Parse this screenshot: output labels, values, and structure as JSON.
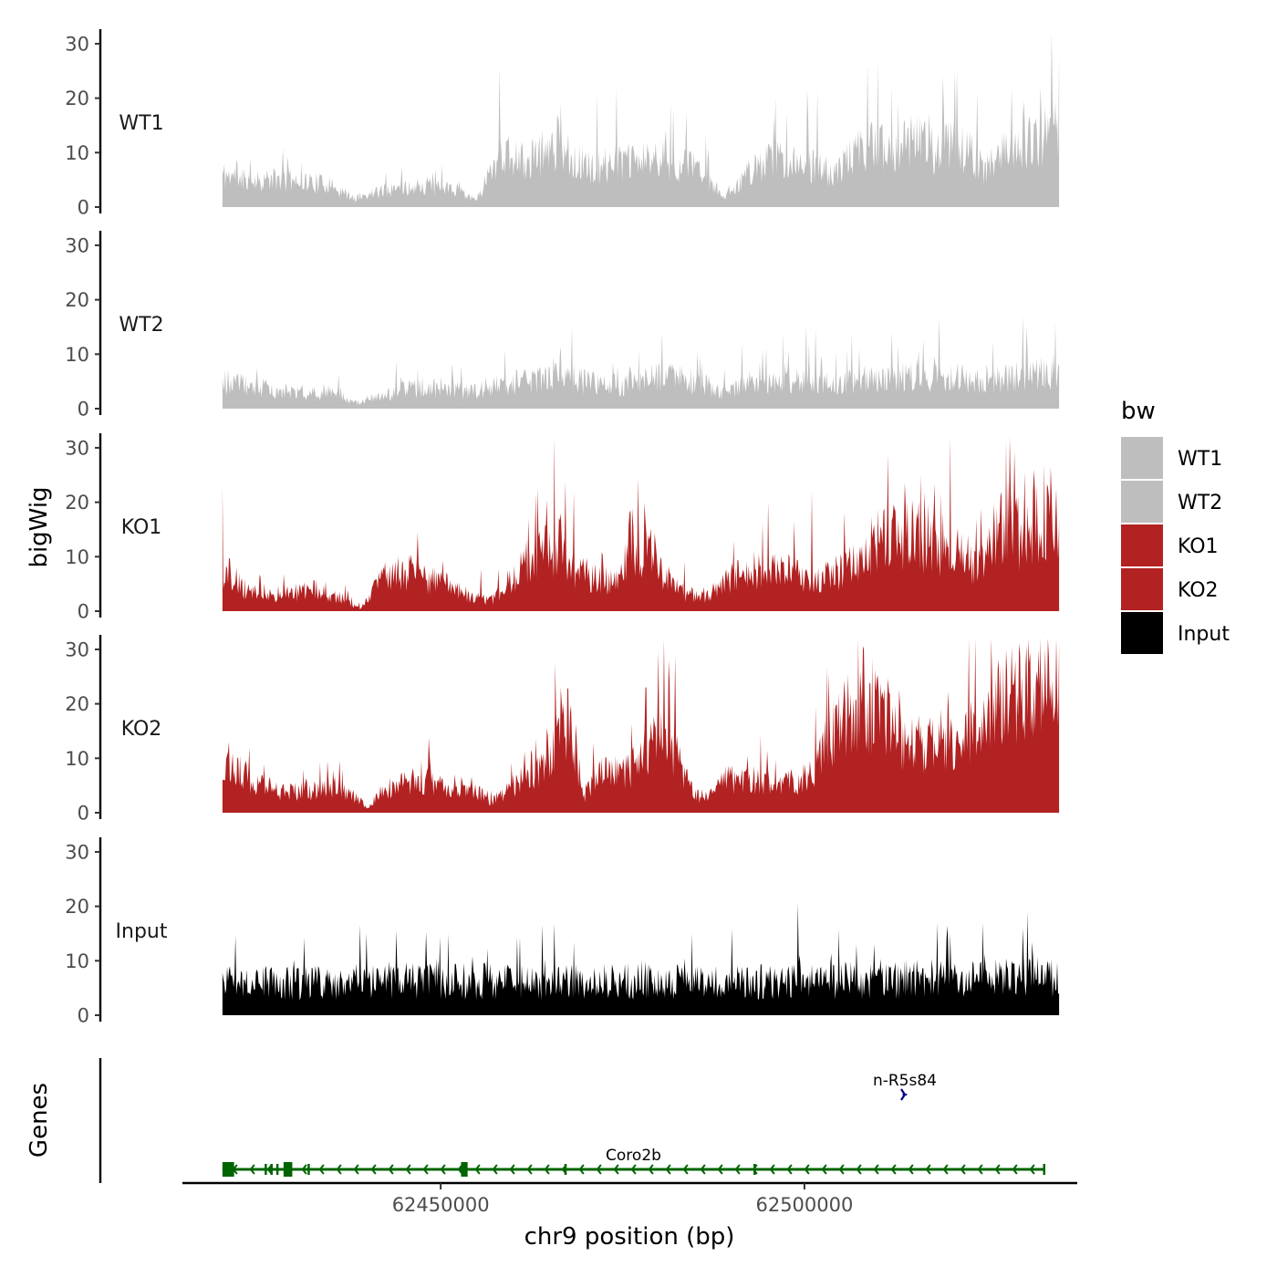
{
  "chart_data": {
    "type": "area",
    "title": "",
    "xlabel": "chr9 position (bp)",
    "ylabel": "bigWig",
    "genes_label": "Genes",
    "xlim": [
      62414500,
      62537500
    ],
    "data_xrange": [
      62420000,
      62535000
    ],
    "x_ticks": [
      {
        "value": 62450000,
        "label": "62450000"
      },
      {
        "value": 62500000,
        "label": "62500000"
      }
    ],
    "ylim": [
      0,
      32
    ],
    "y_ticks": [
      {
        "value": 0,
        "label": "0"
      },
      {
        "value": 10,
        "label": "10"
      },
      {
        "value": 20,
        "label": "20"
      },
      {
        "value": 30,
        "label": "30"
      }
    ],
    "series": [
      {
        "name": "WT1",
        "color": "#BEBEBE",
        "seed": 11,
        "noise": 0.45,
        "profile": [
          [
            62420000,
            6
          ],
          [
            62425000,
            5
          ],
          [
            62430000,
            5
          ],
          [
            62435000,
            4
          ],
          [
            62438000,
            1.5
          ],
          [
            62442000,
            3
          ],
          [
            62448000,
            4
          ],
          [
            62452000,
            3
          ],
          [
            62455000,
            1.5
          ],
          [
            62458000,
            10
          ],
          [
            62462000,
            8
          ],
          [
            62466000,
            12
          ],
          [
            62470000,
            7
          ],
          [
            62475000,
            8
          ],
          [
            62480000,
            9
          ],
          [
            62485000,
            7
          ],
          [
            62489000,
            2
          ],
          [
            62492000,
            6
          ],
          [
            62496000,
            9
          ],
          [
            62500000,
            8
          ],
          [
            62504000,
            6
          ],
          [
            62508000,
            11
          ],
          [
            62513000,
            11
          ],
          [
            62516000,
            14
          ],
          [
            62518000,
            10
          ],
          [
            62521000,
            12
          ],
          [
            62525000,
            7
          ],
          [
            62528000,
            11
          ],
          [
            62532000,
            12
          ],
          [
            62535000,
            15
          ]
        ],
        "peaks": [
          [
            62466500,
            19
          ],
          [
            62482000,
            18
          ],
          [
            62496000,
            20
          ],
          [
            62512000,
            22
          ],
          [
            62519000,
            24
          ],
          [
            62521000,
            25
          ],
          [
            62528500,
            22
          ],
          [
            62532500,
            22
          ],
          [
            62535000,
            28
          ]
        ]
      },
      {
        "name": "WT2",
        "color": "#BEBEBE",
        "seed": 23,
        "noise": 0.5,
        "profile": [
          [
            62420000,
            5
          ],
          [
            62425000,
            4
          ],
          [
            62430000,
            3
          ],
          [
            62435000,
            3
          ],
          [
            62438000,
            1
          ],
          [
            62441000,
            2
          ],
          [
            62445000,
            3.5
          ],
          [
            62450000,
            4
          ],
          [
            62454000,
            3
          ],
          [
            62458000,
            4.5
          ],
          [
            62462000,
            5
          ],
          [
            62466000,
            6
          ],
          [
            62470000,
            5
          ],
          [
            62475000,
            4
          ],
          [
            62480000,
            6
          ],
          [
            62485000,
            5
          ],
          [
            62489000,
            3
          ],
          [
            62493000,
            5
          ],
          [
            62498000,
            5
          ],
          [
            62503000,
            5
          ],
          [
            62508000,
            5
          ],
          [
            62512000,
            6
          ],
          [
            62516000,
            6
          ],
          [
            62520000,
            6
          ],
          [
            62525000,
            5
          ],
          [
            62530000,
            6
          ],
          [
            62535000,
            7
          ]
        ],
        "peaks": [
          [
            62468000,
            15
          ],
          [
            62480500,
            14
          ],
          [
            62497000,
            14
          ],
          [
            62512000,
            14
          ],
          [
            62518500,
            17
          ],
          [
            62530500,
            15
          ],
          [
            62534500,
            16
          ]
        ]
      },
      {
        "name": "KO1",
        "color": "#B22222",
        "seed": 37,
        "noise": 0.5,
        "profile": [
          [
            62420000,
            8
          ],
          [
            62423000,
            4
          ],
          [
            62428000,
            3
          ],
          [
            62433000,
            4
          ],
          [
            62437000,
            2
          ],
          [
            62439000,
            0.5
          ],
          [
            62442000,
            6
          ],
          [
            62446000,
            7
          ],
          [
            62450000,
            5
          ],
          [
            62454000,
            3
          ],
          [
            62457000,
            2
          ],
          [
            62459000,
            5
          ],
          [
            62462000,
            9
          ],
          [
            62466000,
            12
          ],
          [
            62469000,
            7
          ],
          [
            62472000,
            6
          ],
          [
            62474500,
            5
          ],
          [
            62476000,
            13
          ],
          [
            62479000,
            11
          ],
          [
            62481000,
            6
          ],
          [
            62484000,
            3
          ],
          [
            62487000,
            3
          ],
          [
            62490000,
            6
          ],
          [
            62494000,
            8
          ],
          [
            62498000,
            7
          ],
          [
            62502000,
            6
          ],
          [
            62506000,
            8
          ],
          [
            62510000,
            13
          ],
          [
            62514000,
            14
          ],
          [
            62518000,
            13
          ],
          [
            62522000,
            10
          ],
          [
            62524000,
            8
          ],
          [
            62527000,
            15
          ],
          [
            62531000,
            14
          ],
          [
            62533000,
            18
          ],
          [
            62535000,
            18
          ]
        ],
        "peaks": [
          [
            62420000,
            23
          ],
          [
            62462000,
            17
          ],
          [
            62466500,
            18
          ],
          [
            62478000,
            20
          ],
          [
            62501000,
            22
          ],
          [
            62516000,
            25
          ],
          [
            62528000,
            24
          ],
          [
            62531500,
            26
          ],
          [
            62533000,
            27
          ]
        ]
      },
      {
        "name": "KO2",
        "color": "#B22222",
        "seed": 53,
        "noise": 0.45,
        "profile": [
          [
            62420000,
            10
          ],
          [
            62424000,
            6
          ],
          [
            62428000,
            4
          ],
          [
            62432000,
            4
          ],
          [
            62436000,
            5
          ],
          [
            62438000,
            3
          ],
          [
            62440000,
            1
          ],
          [
            62442000,
            4
          ],
          [
            62446000,
            6
          ],
          [
            62450000,
            5
          ],
          [
            62454000,
            5
          ],
          [
            62457000,
            2
          ],
          [
            62460000,
            5
          ],
          [
            62463000,
            8
          ],
          [
            62466000,
            13
          ],
          [
            62468000,
            17
          ],
          [
            62469500,
            3
          ],
          [
            62472000,
            7
          ],
          [
            62476000,
            8
          ],
          [
            62479000,
            12
          ],
          [
            62481000,
            16
          ],
          [
            62483000,
            8
          ],
          [
            62485000,
            3
          ],
          [
            62487000,
            3
          ],
          [
            62489000,
            6
          ],
          [
            62493000,
            6
          ],
          [
            62497000,
            5
          ],
          [
            62501000,
            7
          ],
          [
            62503000,
            13
          ],
          [
            62506000,
            18
          ],
          [
            62510000,
            19
          ],
          [
            62512000,
            17
          ],
          [
            62514000,
            12
          ],
          [
            62518000,
            13
          ],
          [
            62522000,
            14
          ],
          [
            62524000,
            16
          ],
          [
            62527000,
            22
          ],
          [
            62532000,
            22
          ],
          [
            62535000,
            28
          ]
        ],
        "peaks": [
          [
            62466500,
            23
          ],
          [
            62481500,
            24
          ],
          [
            62503000,
            27
          ],
          [
            62508000,
            30
          ],
          [
            62527000,
            27
          ],
          [
            62532500,
            32
          ],
          [
            62535000,
            31
          ]
        ]
      },
      {
        "name": "Input",
        "color": "#000000",
        "seed": 71,
        "noise": 0.55,
        "profile": [
          [
            62420000,
            6
          ],
          [
            62435000,
            6
          ],
          [
            62450000,
            6.5
          ],
          [
            62465000,
            6
          ],
          [
            62480000,
            6.5
          ],
          [
            62495000,
            6
          ],
          [
            62510000,
            6.5
          ],
          [
            62525000,
            7
          ],
          [
            62535000,
            7
          ]
        ],
        "peaks": [
          [
            62451000,
            15
          ],
          [
            62484500,
            15
          ],
          [
            62520000,
            15
          ],
          [
            62524500,
            17
          ],
          [
            62530000,
            16
          ]
        ]
      }
    ],
    "legend": {
      "title": "bw",
      "position": "right",
      "entries": [
        {
          "label": "WT1",
          "color": "#BEBEBE"
        },
        {
          "label": "WT2",
          "color": "#BEBEBE"
        },
        {
          "label": "KO1",
          "color": "#B22222"
        },
        {
          "label": "KO2",
          "color": "#B22222"
        },
        {
          "label": "Input",
          "color": "#000000"
        }
      ]
    },
    "genes": [
      {
        "name": "Coro2b",
        "strand": "-",
        "color": "#006400",
        "row": 0,
        "start": 62420000,
        "end": 62533000,
        "exons": [
          [
            62420000,
            62421600
          ],
          [
            62425800,
            62426000
          ],
          [
            62426600,
            62426800
          ],
          [
            62427400,
            62427600
          ],
          [
            62428400,
            62429600
          ],
          [
            62431700,
            62432000
          ],
          [
            62452800,
            62453700
          ],
          [
            62467000,
            62467200
          ],
          [
            62493000,
            62493200
          ],
          [
            62532800,
            62533000
          ]
        ]
      },
      {
        "name": "n-R5s84",
        "strand": "+",
        "color": "#00008B",
        "row": 1,
        "start": 62513500,
        "end": 62514100,
        "exons": [
          [
            62513500,
            62514100
          ]
        ]
      }
    ]
  }
}
